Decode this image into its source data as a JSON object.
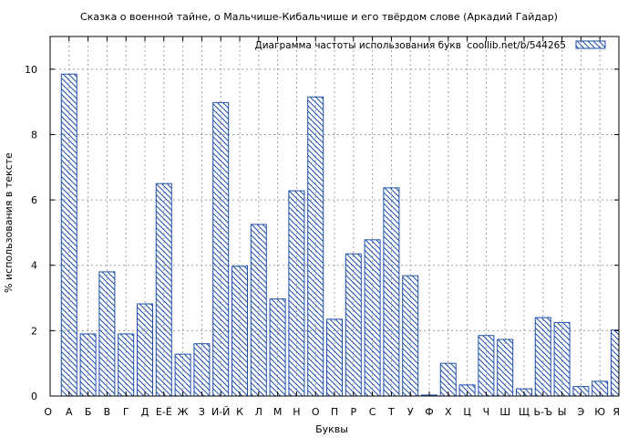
{
  "chart_data": {
    "type": "bar",
    "title": "Сказка о военной тайне, о Мальчише-Кибальчише и его твёрдом слове (Аркадий Гайдар)",
    "xlabel": "Буквы",
    "ylabel": "% использования в тексте",
    "legend": "Диаграмма частоты использования букв  coollib.net/b/544265",
    "legend_position": "top-right",
    "grid": true,
    "ylim": [
      0,
      11
    ],
    "yticks": [
      0,
      2,
      4,
      6,
      8,
      10
    ],
    "categories": [
      "О",
      "А",
      "Б",
      "В",
      "Г",
      "Д",
      "Е-Ё",
      "Ж",
      "З",
      "И-Й",
      "К",
      "Л",
      "М",
      "Н",
      "О",
      "П",
      "Р",
      "С",
      "Т",
      "У",
      "Ф",
      "Х",
      "Ц",
      "Ч",
      "Ш",
      "Щ",
      "Ь-Ъ",
      "Ы",
      "Э",
      "Ю",
      "Я"
    ],
    "values": [
      null,
      9.85,
      1.9,
      3.8,
      1.9,
      2.82,
      6.5,
      1.28,
      1.6,
      8.98,
      3.97,
      5.25,
      2.97,
      6.28,
      9.15,
      2.35,
      4.35,
      4.78,
      6.37,
      3.68,
      0.03,
      1.0,
      0.34,
      1.85,
      1.73,
      0.22,
      2.4,
      2.25,
      0.29,
      0.45,
      2.02
    ],
    "colors": {
      "bar_stroke": "#1f4fa8",
      "hatch": "#1f4fa8",
      "grid": "#a0a0a0"
    }
  }
}
